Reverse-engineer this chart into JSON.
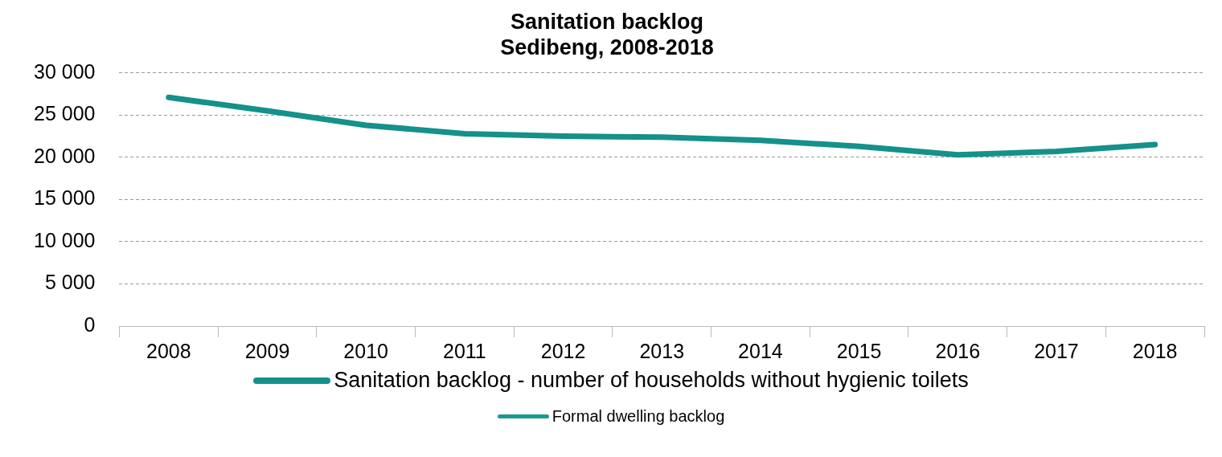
{
  "chart_data": {
    "type": "line",
    "title": [
      "Sanitation backlog",
      "Sedibeng, 2008-2018"
    ],
    "categories": [
      "2008",
      "2009",
      "2010",
      "2011",
      "2012",
      "2013",
      "2014",
      "2015",
      "2016",
      "2017",
      "2018"
    ],
    "series": [
      {
        "name": "Sanitation backlog - number of households without hygienic toilets",
        "color": "#14918a",
        "values": [
          27100,
          25500,
          23800,
          22800,
          22500,
          22400,
          22000,
          21300,
          20300,
          20700,
          21500
        ]
      },
      {
        "name": "Formal dwelling backlog",
        "color": "#1a9a90",
        "values": [
          null,
          null,
          null,
          null,
          null,
          null,
          null,
          null,
          null,
          null,
          null
        ]
      }
    ],
    "ylim": [
      0,
      30000
    ],
    "yticks": [
      {
        "value": 0,
        "label": "0"
      },
      {
        "value": 5000,
        "label": "5 000"
      },
      {
        "value": 10000,
        "label": "10 000"
      },
      {
        "value": 15000,
        "label": "15 000"
      },
      {
        "value": 20000,
        "label": "20 000"
      },
      {
        "value": 25000,
        "label": "25 000"
      },
      {
        "value": 30000,
        "label": "30 000"
      }
    ],
    "grid": "y",
    "legend": "bottom",
    "marker": "none",
    "line_style": "solid"
  }
}
